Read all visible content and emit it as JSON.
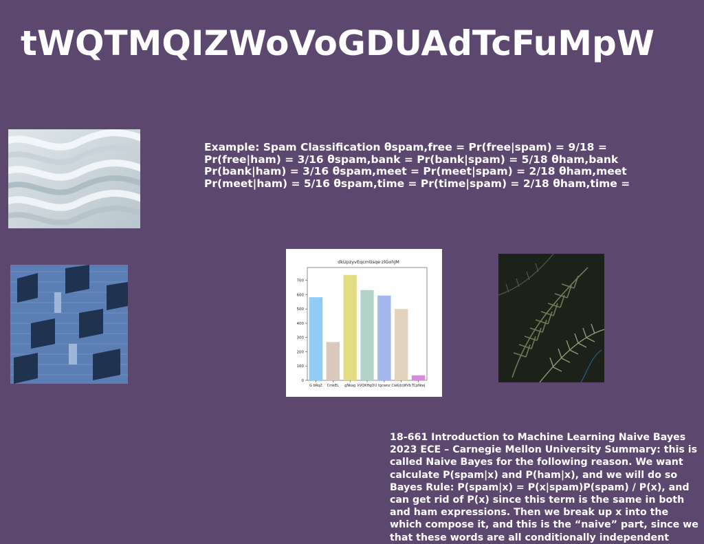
{
  "slide": {
    "title": "tWQTMQIZWoVoGDUAdTcFuMpW",
    "text_top": "Example: Spam Classification θspam,free = Pr(free|spam) = 9/18 = Pr(free|ham) = 3/16 θspam,bank = Pr(bank|spam) = 5/18 θham,bank Pr(bank|ham) = 3/16 θspam,meet = Pr(meet|spam) = 2/18 θham,meet Pr(meet|ham) = 5/16 θspam,time = Pr(time|spam) = 2/18 θham,time =",
    "text_bottom": "18-661 Introduction to Machine Learning Naive Bayes 2023 ECE – Carnegie Mellon University Summary: this is called Naive Bayes for the following reason. We want calculate P(spam|x) and P(ham|x), and we will do so Bayes Rule: P(spam|x) = P(x|spam)P(spam) / P(x), and can get rid of P(x) since this term is the same in both and ham expressions. Then we break up x into the which compose it, and this is the “naive” part, since we that these words are all conditionally independent"
  },
  "colors": {
    "background": "#5c486f",
    "text": "#ffffff"
  },
  "images": {
    "waves": "abstract-white-waves-photo",
    "building": "blue-brick-building-facade-photo",
    "fern": "dark-fern-leaves-photo"
  },
  "chart_data": {
    "type": "bar",
    "title": "dkUpzyvEqcmtisqe zlGohJM",
    "categories": [
      "G bRqZ",
      "CmkEL",
      "gNkag",
      "kVQKHqOU",
      "tgcwnz",
      "CwKdcWVb",
      "TCpNrej"
    ],
    "values": [
      582,
      268,
      738,
      632,
      594,
      500,
      35
    ],
    "colors": [
      "#92cbf4",
      "#dbc9c0",
      "#e2dc86",
      "#b3d3c9",
      "#a4b8ef",
      "#e2d3bf",
      "#d68ad9"
    ],
    "ylim": [
      0,
      790
    ],
    "yticks": [
      0,
      100,
      200,
      300,
      400,
      500,
      600,
      700
    ],
    "xlabel": "",
    "ylabel": "",
    "grid": false
  }
}
